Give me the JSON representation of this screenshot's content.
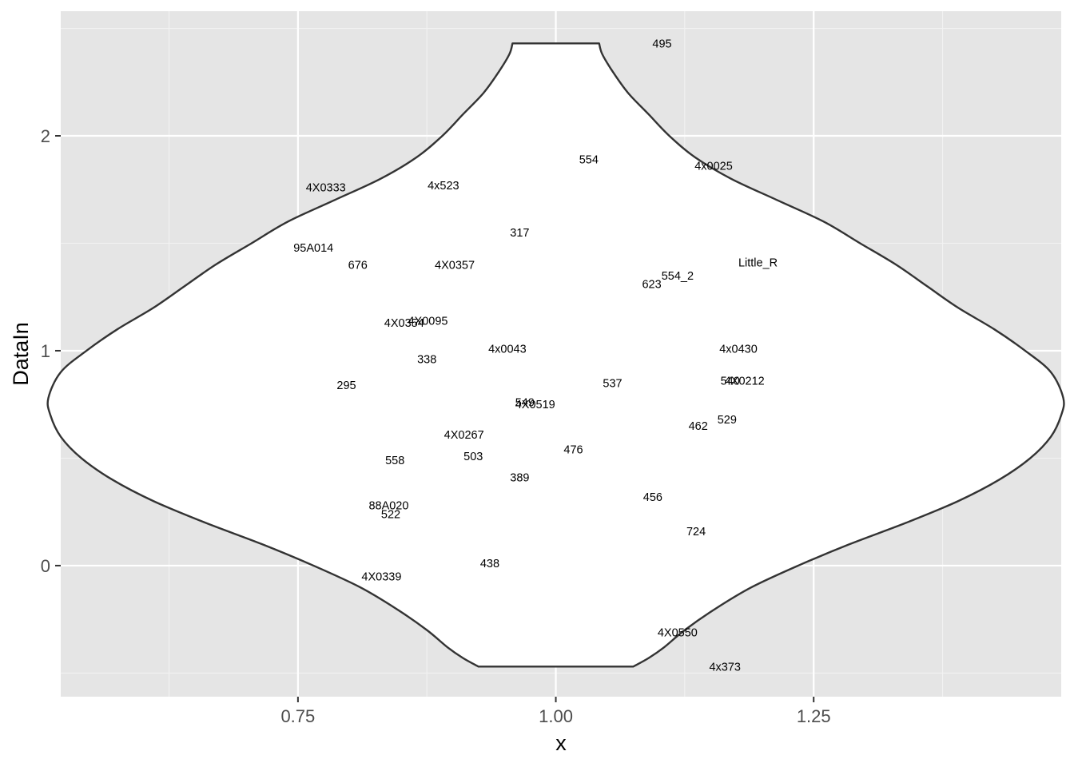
{
  "chart_data": {
    "type": "violin",
    "xlabel": "x",
    "ylabel": "DataIn",
    "xlim": [
      0.52,
      1.49
    ],
    "ylim": [
      -0.61,
      2.58
    ],
    "x_ticks": [
      0.75,
      1.0,
      1.25
    ],
    "x_tick_labels": [
      "0.75",
      "1.00",
      "1.25"
    ],
    "x_minor": [
      0.625,
      0.875,
      1.125,
      1.375
    ],
    "y_ticks": [
      0,
      1,
      2
    ],
    "y_tick_labels": [
      "0",
      "1",
      "2"
    ],
    "y_minor": [
      -0.5,
      0.5,
      1.5,
      2.5
    ],
    "grid": true,
    "violin": {
      "center": 1.0,
      "y_min": -0.47,
      "y_max": 2.43,
      "profile": [
        [
          -0.47,
          0.075
        ],
        [
          -0.43,
          0.09
        ],
        [
          -0.38,
          0.105
        ],
        [
          -0.3,
          0.125
        ],
        [
          -0.2,
          0.155
        ],
        [
          -0.1,
          0.19
        ],
        [
          0.0,
          0.235
        ],
        [
          0.1,
          0.285
        ],
        [
          0.2,
          0.34
        ],
        [
          0.3,
          0.39
        ],
        [
          0.4,
          0.43
        ],
        [
          0.5,
          0.46
        ],
        [
          0.6,
          0.48
        ],
        [
          0.7,
          0.49
        ],
        [
          0.78,
          0.492
        ],
        [
          0.9,
          0.48
        ],
        [
          1.0,
          0.455
        ],
        [
          1.1,
          0.425
        ],
        [
          1.2,
          0.39
        ],
        [
          1.3,
          0.36
        ],
        [
          1.4,
          0.33
        ],
        [
          1.5,
          0.295
        ],
        [
          1.6,
          0.26
        ],
        [
          1.7,
          0.215
        ],
        [
          1.8,
          0.17
        ],
        [
          1.9,
          0.135
        ],
        [
          2.0,
          0.11
        ],
        [
          2.1,
          0.09
        ],
        [
          2.2,
          0.07
        ],
        [
          2.3,
          0.055
        ],
        [
          2.38,
          0.045
        ],
        [
          2.43,
          0.042
        ]
      ]
    },
    "points": [
      {
        "label": "495",
        "x": 1.103,
        "y": 2.43
      },
      {
        "label": "554",
        "x": 1.032,
        "y": 1.89
      },
      {
        "label": "4x0025",
        "x": 1.153,
        "y": 1.86
      },
      {
        "label": "4X0333",
        "x": 0.777,
        "y": 1.76
      },
      {
        "label": "4x523",
        "x": 0.891,
        "y": 1.77
      },
      {
        "label": "317",
        "x": 0.965,
        "y": 1.55
      },
      {
        "label": "95A014",
        "x": 0.765,
        "y": 1.48
      },
      {
        "label": "676",
        "x": 0.808,
        "y": 1.4
      },
      {
        "label": "4X0357",
        "x": 0.902,
        "y": 1.4
      },
      {
        "label": "Little_R",
        "x": 1.196,
        "y": 1.41
      },
      {
        "label": "554_2",
        "x": 1.118,
        "y": 1.35
      },
      {
        "label": "623",
        "x": 1.093,
        "y": 1.31
      },
      {
        "label": "4X0354",
        "x": 0.853,
        "y": 1.13
      },
      {
        "label": "4X0095",
        "x": 0.876,
        "y": 1.14
      },
      {
        "label": "4x0043",
        "x": 0.953,
        "y": 1.01
      },
      {
        "label": "4x0430",
        "x": 1.177,
        "y": 1.01
      },
      {
        "label": "338",
        "x": 0.875,
        "y": 0.96
      },
      {
        "label": "295",
        "x": 0.797,
        "y": 0.84
      },
      {
        "label": "537",
        "x": 1.055,
        "y": 0.85
      },
      {
        "label": "540",
        "x": 1.169,
        "y": 0.86
      },
      {
        "label": "4X0212",
        "x": 1.183,
        "y": 0.86
      },
      {
        "label": "549",
        "x": 0.97,
        "y": 0.76
      },
      {
        "label": "4X0519",
        "x": 0.98,
        "y": 0.75
      },
      {
        "label": "529",
        "x": 1.166,
        "y": 0.68
      },
      {
        "label": "462",
        "x": 1.138,
        "y": 0.65
      },
      {
        "label": "4X0267",
        "x": 0.911,
        "y": 0.61
      },
      {
        "label": "476",
        "x": 1.017,
        "y": 0.54
      },
      {
        "label": "503",
        "x": 0.92,
        "y": 0.51
      },
      {
        "label": "558",
        "x": 0.844,
        "y": 0.49
      },
      {
        "label": "389",
        "x": 0.965,
        "y": 0.41
      },
      {
        "label": "456",
        "x": 1.094,
        "y": 0.32
      },
      {
        "label": "88A020",
        "x": 0.838,
        "y": 0.28
      },
      {
        "label": "522",
        "x": 0.84,
        "y": 0.24
      },
      {
        "label": "724",
        "x": 1.136,
        "y": 0.16
      },
      {
        "label": "438",
        "x": 0.936,
        "y": 0.01
      },
      {
        "label": "4X0339",
        "x": 0.831,
        "y": -0.05
      },
      {
        "label": "4X0550",
        "x": 1.118,
        "y": -0.31
      },
      {
        "label": "4x373",
        "x": 1.164,
        "y": -0.47
      }
    ]
  },
  "colors": {
    "panel_bg": "#e5e5e5",
    "grid_major": "#ffffff",
    "grid_minor": "#f2f2f2",
    "violin_fill": "#ffffff",
    "violin_stroke": "#333333",
    "tick": "#333333",
    "tick_text": "#4d4d4d",
    "label_text": "#000000"
  }
}
